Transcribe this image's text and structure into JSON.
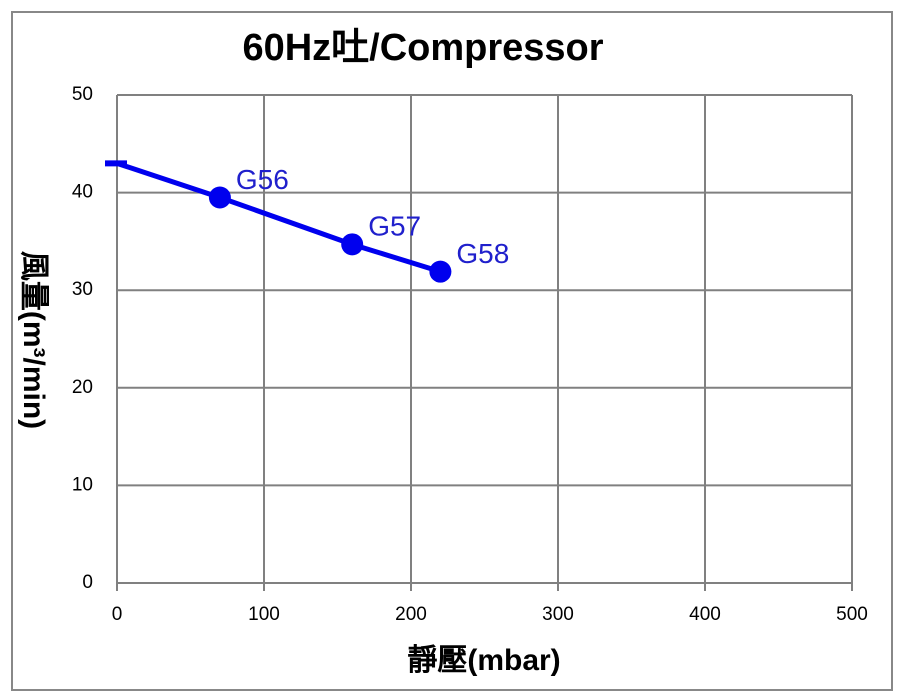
{
  "chart_data": {
    "type": "line",
    "title": "60Hz吐/Compressor",
    "x_label": "靜壓(mbar)",
    "y_label": "風量(m³/min)",
    "x": [
      0,
      70,
      160,
      220
    ],
    "series": [
      {
        "name": "Compressor",
        "color": "#0000ee",
        "values": [
          43,
          39.5,
          34.7,
          31.9
        ],
        "point_labels": [
          null,
          "G56",
          "G57",
          "G58"
        ]
      }
    ],
    "xlim": [
      0,
      500
    ],
    "xticks": [
      0,
      100,
      200,
      300,
      400,
      500
    ],
    "ylim": [
      0,
      50
    ],
    "yticks": [
      0,
      10,
      20,
      30,
      40,
      50
    ],
    "grid": true
  }
}
